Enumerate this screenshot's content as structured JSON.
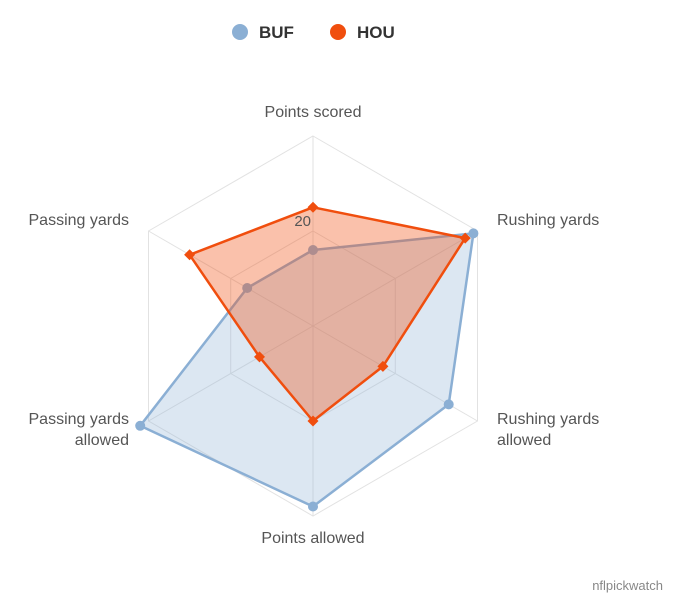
{
  "chart_data": {
    "type": "radar",
    "axes": [
      "Points scored",
      "Rushing yards",
      "Rushing yards allowed",
      "Points allowed",
      "Passing yards allowed",
      "Passing yards"
    ],
    "axis_label_lines": [
      [
        "Points scored"
      ],
      [
        "Rushing yards"
      ],
      [
        "Rushing yards",
        "allowed"
      ],
      [
        "Points allowed"
      ],
      [
        "Passing yards",
        "allowed"
      ],
      [
        "Passing yards"
      ]
    ],
    "rmax": 40,
    "tick_label": "20",
    "grid": true,
    "legend_position": "top-center",
    "series": [
      {
        "name": "BUF",
        "color": "#8BAFD4",
        "fill": "rgba(139,175,212,0.30)",
        "marker": "circle",
        "values": [
          16,
          39,
          33,
          38,
          42,
          16
        ]
      },
      {
        "name": "HOU",
        "color": "#F04E0E",
        "fill": "rgba(240,78,14,0.35)",
        "marker": "diamond",
        "values": [
          25,
          37,
          17,
          20,
          13,
          30
        ]
      }
    ]
  },
  "credit": "nflpickwatch"
}
